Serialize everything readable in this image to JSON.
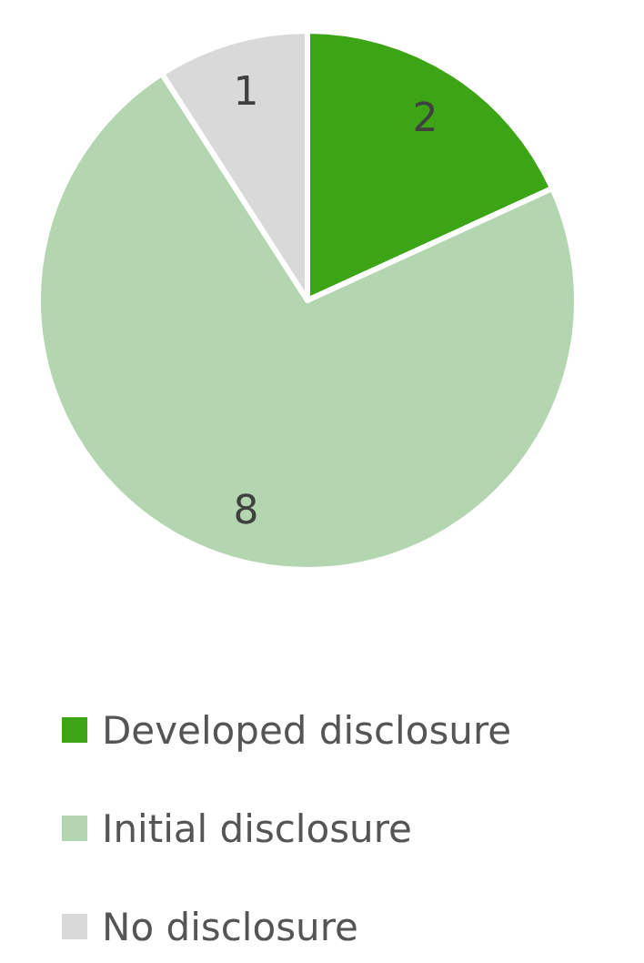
{
  "chart_data": {
    "type": "pie",
    "categories": [
      "Developed disclosure",
      "Initial disclosure",
      "No disclosure"
    ],
    "values": [
      2,
      8,
      1
    ],
    "colors": [
      "#3ba515",
      "#b3d5b0",
      "#d9d9d9"
    ],
    "data_labels": true,
    "legend": "bottom"
  }
}
